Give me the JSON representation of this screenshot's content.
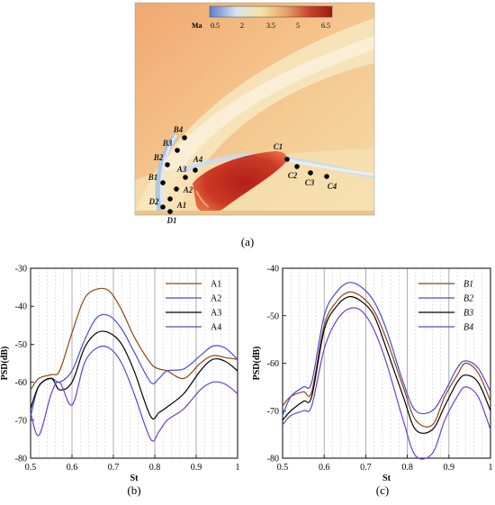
{
  "panels": {
    "a": "(a)",
    "b": "(b)",
    "c": "(c)"
  },
  "colorbar": {
    "title": "Ma",
    "ticks": [
      "0.5",
      "2",
      "3.5",
      "5",
      "6.5"
    ],
    "colors": [
      "#5b7fc9",
      "#d8e4f1",
      "#f3e3a6",
      "#e8a36a",
      "#c7412a",
      "#9e1a14"
    ]
  },
  "probes": [
    {
      "name": "B4",
      "label": "B4"
    },
    {
      "name": "B3",
      "label": "B3"
    },
    {
      "name": "B2",
      "label": "B2"
    },
    {
      "name": "B1",
      "label": "B1"
    },
    {
      "name": "D2",
      "label": "D2"
    },
    {
      "name": "D1",
      "label": "D1"
    },
    {
      "name": "A1",
      "label": "A1"
    },
    {
      "name": "A2",
      "label": "A2"
    },
    {
      "name": "A3",
      "label": "A3"
    },
    {
      "name": "A4",
      "label": "A4"
    },
    {
      "name": "C1",
      "label": "C1"
    },
    {
      "name": "C2",
      "label": "C2"
    },
    {
      "name": "C3",
      "label": "C3"
    },
    {
      "name": "C4",
      "label": "C4"
    }
  ],
  "chart_data": [
    {
      "type": "line",
      "panel": "(b)",
      "xlabel": "St",
      "ylabel": "PSD(dB)",
      "xlim": [
        0.5,
        1.0
      ],
      "ylim": [
        -80,
        -30
      ],
      "xticks": [
        "0.5",
        "0.6",
        "0.7",
        "0.8",
        "0.9",
        "1"
      ],
      "yticks": [
        "-30",
        "-40",
        "-50",
        "-60",
        "-70",
        "-80"
      ],
      "legend_position": "top-right",
      "grid": "vertical dashed",
      "x": [
        0.5,
        0.52,
        0.55,
        0.57,
        0.6,
        0.63,
        0.66,
        0.69,
        0.72,
        0.75,
        0.79,
        0.81,
        0.83,
        0.87,
        0.91,
        0.94,
        0.97,
        1.0
      ],
      "series": [
        {
          "name": "A1",
          "color": "#8b4513",
          "values": [
            -62,
            -59,
            -58,
            -57,
            -47,
            -38,
            -35.5,
            -36,
            -41,
            -48,
            -55,
            -56.5,
            -57,
            -59,
            -55,
            -53,
            -53.5,
            -54
          ]
        },
        {
          "name": "A2",
          "color": "#4a4ad8",
          "values": [
            -69,
            -61,
            -59,
            -60,
            -57,
            -49,
            -43,
            -42.5,
            -46,
            -52,
            -60,
            -59,
            -57,
            -56.5,
            -53,
            -50.5,
            -51,
            -54
          ]
        },
        {
          "name": "A3",
          "color": "#000000",
          "values": [
            -67,
            -61,
            -59,
            -62,
            -60,
            -51,
            -47,
            -47,
            -50,
            -57,
            -69,
            -68,
            -66.5,
            -63,
            -57,
            -54,
            -54.5,
            -57
          ]
        },
        {
          "name": "A4",
          "color": "#6a3fd0",
          "values": [
            -68,
            -74,
            -63,
            -60,
            -66,
            -55,
            -51,
            -51,
            -55,
            -63,
            -75,
            -73,
            -70,
            -67,
            -62,
            -60,
            -60.5,
            -63
          ]
        }
      ]
    },
    {
      "type": "line",
      "panel": "(c)",
      "xlabel": "St",
      "ylabel": "PSD(dB)",
      "xlim": [
        0.5,
        1.0
      ],
      "ylim": [
        -80,
        -40
      ],
      "xticks": [
        "0.5",
        "0.6",
        "0.7",
        "0.8",
        "0.9",
        "1"
      ],
      "yticks": [
        "-40",
        "-50",
        "-60",
        "-70",
        "-80"
      ],
      "legend_position": "top-right",
      "grid": "vertical dashed",
      "x": [
        0.5,
        0.52,
        0.55,
        0.57,
        0.6,
        0.63,
        0.66,
        0.69,
        0.72,
        0.75,
        0.79,
        0.82,
        0.86,
        0.89,
        0.92,
        0.94,
        0.97,
        1.0
      ],
      "series": [
        {
          "name": "B1",
          "color": "#8b4513",
          "values": [
            -69,
            -67,
            -66,
            -66,
            -52,
            -47,
            -45,
            -46,
            -49,
            -55,
            -65,
            -72,
            -73,
            -67,
            -62.5,
            -60,
            -62,
            -68
          ]
        },
        {
          "name": "B2",
          "color": "#4a4ad8",
          "values": [
            -71,
            -67,
            -65,
            -64,
            -50,
            -45,
            -43,
            -44,
            -47,
            -53,
            -64,
            -70,
            -70,
            -66,
            -61,
            -59.5,
            -61,
            -66
          ]
        },
        {
          "name": "B3",
          "color": "#000000",
          "values": [
            -72,
            -70,
            -68,
            -67,
            -53,
            -48,
            -46,
            -47,
            -50,
            -57,
            -67,
            -74,
            -74,
            -69,
            -64,
            -62.5,
            -64,
            -70
          ]
        },
        {
          "name": "B4",
          "color": "#6a3fd0",
          "values": [
            -73,
            -71,
            -70,
            -69,
            -57,
            -51,
            -48.5,
            -49,
            -53,
            -60,
            -72,
            -79.5,
            -79,
            -72,
            -67,
            -65,
            -67,
            -74
          ]
        }
      ]
    }
  ]
}
